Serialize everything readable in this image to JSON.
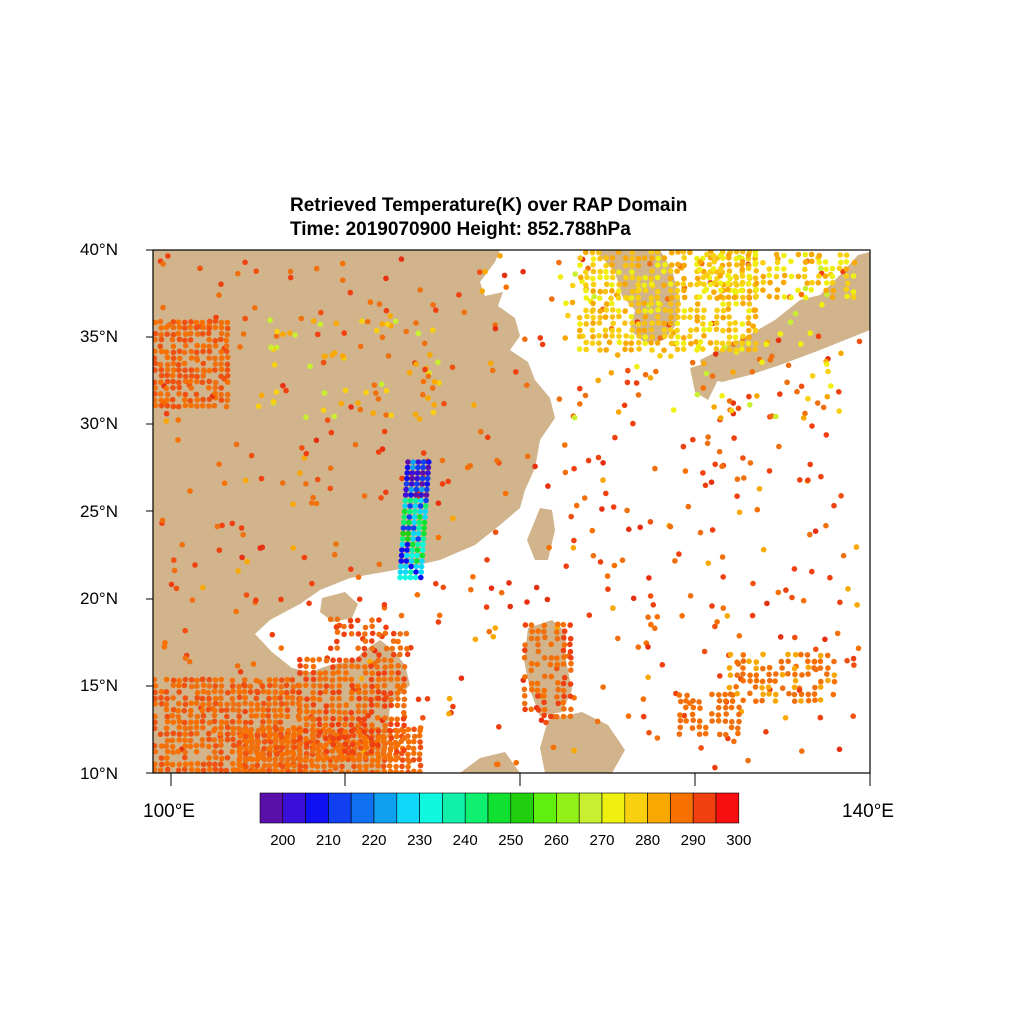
{
  "title_line1": "Retrieved Temperature(K) over RAP Domain",
  "title_line2": "Time: 2019070900  Height: 852.788hPa",
  "map_data": {
    "lon_range": [
      99,
      140
    ],
    "lat_range": [
      10,
      40
    ],
    "y_tick_labels": [
      "40°N",
      "35°N",
      "30°N",
      "25°N",
      "20°N",
      "15°N",
      "10°N"
    ],
    "x_tick_labels": [
      "100°E",
      "140°E"
    ],
    "land_color": "#d2b48c",
    "ocean_color": "#ffffff"
  },
  "colorbar": {
    "labels": [
      "200",
      "210",
      "220",
      "230",
      "240",
      "250",
      "260",
      "270",
      "280",
      "290",
      "300"
    ],
    "colors": [
      "#5a0fa8",
      "#3a10d8",
      "#1010f0",
      "#1040f0",
      "#1070f0",
      "#10a0f0",
      "#10d8f8",
      "#10f8e0",
      "#10f0a8",
      "#10f070",
      "#10e030",
      "#20d010",
      "#60f010",
      "#90f018",
      "#c8f030",
      "#f0f010",
      "#f8d010",
      "#f8a800",
      "#f87000",
      "#f04010",
      "#f81010"
    ]
  }
}
